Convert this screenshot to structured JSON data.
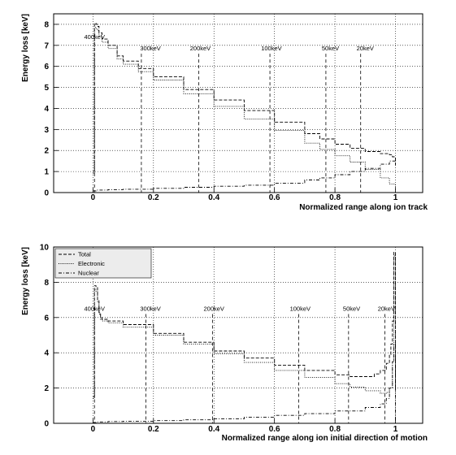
{
  "chart_data": [
    {
      "type": "line",
      "title": "",
      "xlabel": "Normalized range along ion track",
      "ylabel": "Energy loss [keV]",
      "xlim": [
        -0.13,
        1.09
      ],
      "ylim": [
        0,
        8.5
      ],
      "xticks": [
        0,
        0.2,
        0.4,
        0.6,
        0.8,
        1
      ],
      "xtick_labels": [
        "0",
        "0.2",
        "0.4",
        "0.6",
        "0.8",
        "1"
      ],
      "yticks": [
        0,
        1,
        2,
        3,
        4,
        5,
        6,
        7,
        8
      ],
      "ytick_labels": [
        "0",
        "1",
        "2",
        "3",
        "4",
        "5",
        "6",
        "7",
        "8"
      ],
      "grid": true,
      "legend": null,
      "annotations": [
        {
          "label": "400keV",
          "x": 0.005,
          "label_x": 0.005,
          "y_top": 7.15
        },
        {
          "label": "300keV",
          "x": 0.16,
          "label_x": 0.19,
          "y_top": 6.6
        },
        {
          "label": "200keV",
          "x": 0.35,
          "label_x": 0.355,
          "y_top": 6.6
        },
        {
          "label": "100keV",
          "x": 0.585,
          "label_x": 0.59,
          "y_top": 6.6
        },
        {
          "label": "50keV",
          "x": 0.77,
          "label_x": 0.785,
          "y_top": 6.6
        },
        {
          "label": "20keV",
          "x": 0.885,
          "label_x": 0.9,
          "y_top": 6.6
        }
      ],
      "series": [
        {
          "style": "dashed",
          "x": [
            0.0,
            0.005,
            0.01,
            0.015,
            0.02,
            0.03,
            0.05,
            0.08,
            0.1,
            0.15,
            0.2,
            0.3,
            0.4,
            0.5,
            0.6,
            0.7,
            0.75,
            0.8,
            0.85,
            0.9,
            0.95,
            0.98,
            0.99,
            1.0
          ],
          "y": [
            1.0,
            8.05,
            8.0,
            7.9,
            7.6,
            7.3,
            7.0,
            6.5,
            6.25,
            5.9,
            5.5,
            4.9,
            4.4,
            3.9,
            3.35,
            2.8,
            2.55,
            2.3,
            2.1,
            1.95,
            1.85,
            1.8,
            1.7,
            1.3
          ]
        },
        {
          "style": "dotted",
          "x": [
            0.0,
            0.005,
            0.01,
            0.015,
            0.02,
            0.03,
            0.05,
            0.08,
            0.1,
            0.15,
            0.2,
            0.3,
            0.4,
            0.5,
            0.6,
            0.7,
            0.75,
            0.8,
            0.85,
            0.9,
            0.95,
            0.98,
            1.0
          ],
          "y": [
            0.9,
            7.85,
            7.8,
            7.7,
            7.45,
            7.15,
            6.85,
            6.35,
            6.1,
            5.75,
            5.35,
            4.7,
            4.1,
            3.5,
            2.95,
            2.35,
            2.05,
            1.75,
            1.45,
            1.1,
            0.7,
            0.4,
            0.2
          ]
        },
        {
          "style": "dashdot",
          "x": [
            0.0,
            0.01,
            0.05,
            0.1,
            0.2,
            0.3,
            0.4,
            0.5,
            0.6,
            0.7,
            0.75,
            0.8,
            0.85,
            0.9,
            0.95,
            0.98,
            1.0
          ],
          "y": [
            0.08,
            0.12,
            0.14,
            0.16,
            0.2,
            0.25,
            0.3,
            0.35,
            0.45,
            0.6,
            0.7,
            0.85,
            1.0,
            1.15,
            1.35,
            1.5,
            1.6
          ]
        }
      ]
    },
    {
      "type": "line",
      "title": "",
      "xlabel": "Normalized range along ion initial direction of motion",
      "ylabel": "Energy loss [keV]",
      "xlim": [
        -0.13,
        1.09
      ],
      "ylim": [
        0,
        10
      ],
      "xticks": [
        0,
        0.2,
        0.4,
        0.6,
        0.8,
        1
      ],
      "xtick_labels": [
        "0",
        "0.2",
        "0.4",
        "0.6",
        "0.8",
        "1"
      ],
      "yticks": [
        0,
        2,
        4,
        6,
        8,
        10
      ],
      "ytick_labels": [
        "0",
        "2",
        "4",
        "6",
        "8",
        "10"
      ],
      "grid": true,
      "legend": {
        "position": "top-left",
        "entries": [
          {
            "label": "Total",
            "style": "dashed"
          },
          {
            "label": "Electronic",
            "style": "dotted"
          },
          {
            "label": "Nuclear",
            "style": "dashdot"
          }
        ]
      },
      "annotations": [
        {
          "label": "400keV",
          "x": 0.005,
          "label_x": 0.005,
          "y_top": 6.2
        },
        {
          "label": "300keV",
          "x": 0.175,
          "label_x": 0.19,
          "y_top": 6.2
        },
        {
          "label": "200keV",
          "x": 0.395,
          "label_x": 0.4,
          "y_top": 6.2
        },
        {
          "label": "100keV",
          "x": 0.68,
          "label_x": 0.685,
          "y_top": 6.2
        },
        {
          "label": "50keV",
          "x": 0.845,
          "label_x": 0.855,
          "y_top": 6.2
        },
        {
          "label": "20keV",
          "x": 0.965,
          "label_x": 0.97,
          "y_top": 6.2
        }
      ],
      "series": [
        {
          "style": "dashed",
          "x": [
            0.0,
            0.005,
            0.01,
            0.015,
            0.02,
            0.025,
            0.03,
            0.05,
            0.1,
            0.2,
            0.3,
            0.4,
            0.5,
            0.6,
            0.7,
            0.8,
            0.85,
            0.9,
            0.93,
            0.95,
            0.97,
            0.98,
            0.985,
            0.99,
            0.995,
            1.0
          ],
          "y": [
            1.5,
            7.8,
            7.7,
            7.0,
            6.3,
            6.0,
            5.9,
            5.8,
            5.6,
            5.1,
            4.6,
            4.1,
            3.7,
            3.3,
            3.0,
            2.75,
            2.65,
            2.65,
            2.8,
            3.0,
            3.4,
            3.9,
            4.5,
            5.8,
            9.7,
            2.0
          ]
        },
        {
          "style": "dotted",
          "x": [
            0.0,
            0.005,
            0.01,
            0.015,
            0.02,
            0.025,
            0.03,
            0.05,
            0.1,
            0.2,
            0.3,
            0.4,
            0.5,
            0.6,
            0.7,
            0.8,
            0.85,
            0.9,
            0.95,
            0.97,
            0.98,
            0.99,
            0.995,
            1.0
          ],
          "y": [
            1.4,
            7.6,
            7.5,
            6.9,
            6.2,
            5.9,
            5.8,
            5.7,
            5.45,
            5.0,
            4.5,
            3.95,
            3.45,
            3.0,
            2.6,
            2.25,
            2.05,
            1.85,
            1.7,
            1.75,
            2.0,
            3.5,
            9.5,
            1.8
          ]
        },
        {
          "style": "dashdot",
          "x": [
            0.0,
            0.01,
            0.05,
            0.1,
            0.2,
            0.3,
            0.4,
            0.5,
            0.6,
            0.7,
            0.8,
            0.9,
            0.95,
            0.97,
            0.98,
            0.99,
            0.995,
            1.0
          ],
          "y": [
            0.05,
            0.08,
            0.1,
            0.12,
            0.15,
            0.2,
            0.25,
            0.35,
            0.45,
            0.55,
            0.7,
            0.9,
            1.1,
            1.4,
            2.0,
            3.5,
            4.5,
            0.2
          ]
        }
      ]
    }
  ]
}
